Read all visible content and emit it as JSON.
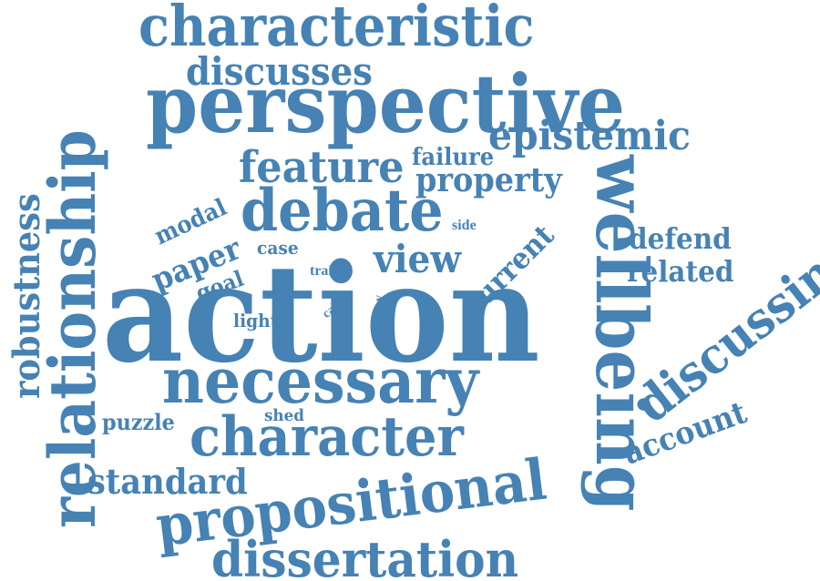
{
  "colors": {
    "word": "#4682b4",
    "background": "#ffffff"
  },
  "words": [
    {
      "id": "action",
      "text": "action",
      "orientation": "horizontal"
    },
    {
      "id": "perspective",
      "text": "perspective",
      "orientation": "horizontal"
    },
    {
      "id": "characteristic",
      "text": "characteristic",
      "orientation": "horizontal"
    },
    {
      "id": "relationship",
      "text": "relationship",
      "orientation": "vertical-up"
    },
    {
      "id": "wellbeing",
      "text": "wellbeing",
      "orientation": "vertical-down"
    },
    {
      "id": "necessary",
      "text": "necessary",
      "orientation": "horizontal"
    },
    {
      "id": "propositional",
      "text": "propositional",
      "orientation": "rotated"
    },
    {
      "id": "character",
      "text": "character",
      "orientation": "horizontal"
    },
    {
      "id": "debate",
      "text": "debate",
      "orientation": "horizontal"
    },
    {
      "id": "dissertation",
      "text": "dissertation",
      "orientation": "horizontal"
    },
    {
      "id": "discussing",
      "text": "discussing",
      "orientation": "rotated"
    },
    {
      "id": "robustness",
      "text": "robustness",
      "orientation": "vertical-up"
    },
    {
      "id": "feature",
      "text": "feature",
      "orientation": "horizontal"
    },
    {
      "id": "discusses",
      "text": "discusses",
      "orientation": "horizontal"
    },
    {
      "id": "epistemic",
      "text": "epistemic",
      "orientation": "horizontal"
    },
    {
      "id": "standard",
      "text": "standard",
      "orientation": "horizontal"
    },
    {
      "id": "property",
      "text": "property",
      "orientation": "horizontal"
    },
    {
      "id": "account",
      "text": "account",
      "orientation": "rotated"
    },
    {
      "id": "view",
      "text": "view",
      "orientation": "horizontal"
    },
    {
      "id": "defend",
      "text": "defend",
      "orientation": "horizontal"
    },
    {
      "id": "related",
      "text": "related",
      "orientation": "horizontal"
    },
    {
      "id": "paper",
      "text": "paper",
      "orientation": "rotated"
    },
    {
      "id": "current",
      "text": "current",
      "orientation": "rotated"
    },
    {
      "id": "failure",
      "text": "failure",
      "orientation": "horizontal"
    },
    {
      "id": "modal",
      "text": "modal",
      "orientation": "rotated"
    },
    {
      "id": "puzzle",
      "text": "puzzle",
      "orientation": "horizontal"
    },
    {
      "id": "goal",
      "text": "goal",
      "orientation": "rotated"
    },
    {
      "id": "case",
      "text": "case",
      "orientation": "horizontal"
    },
    {
      "id": "side",
      "text": "side",
      "orientation": "horizontal"
    },
    {
      "id": "trait",
      "text": "trait",
      "orientation": "horizontal"
    },
    {
      "id": "light",
      "text": "light",
      "orientation": "horizontal"
    },
    {
      "id": "shed",
      "text": "shed",
      "orientation": "horizontal"
    },
    {
      "id": "call",
      "text": "call",
      "orientation": "rotated"
    },
    {
      "id": "way",
      "text": "way",
      "orientation": "vertical-up"
    }
  ]
}
